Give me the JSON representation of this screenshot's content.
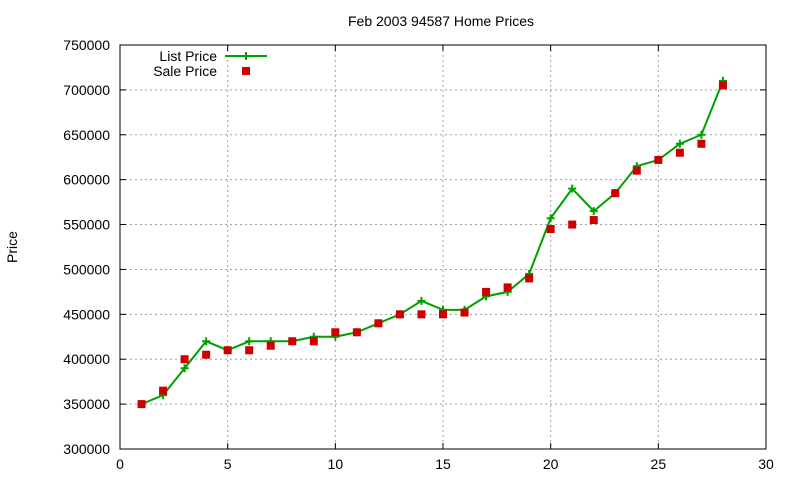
{
  "chart_data": {
    "type": "line",
    "title": "Feb 2003 94587 Home Prices",
    "xlabel": "",
    "ylabel": "Price",
    "xlim": [
      0,
      30
    ],
    "ylim": [
      300000,
      750000
    ],
    "x_ticks": [
      0,
      5,
      10,
      15,
      20,
      25,
      30
    ],
    "y_ticks": [
      300000,
      350000,
      400000,
      450000,
      500000,
      550000,
      600000,
      650000,
      700000,
      750000
    ],
    "x_tick_labels": [
      "0",
      "5",
      "10",
      "15",
      "20",
      "25",
      "30"
    ],
    "y_tick_labels": [
      "300000",
      "350000",
      "400000",
      "450000",
      "500000",
      "550000",
      "600000",
      "650000",
      "700000",
      "750000"
    ],
    "grid": true,
    "legend_position": "top-left",
    "series": [
      {
        "name": "List Price",
        "style": "line-with-plus-markers",
        "color": "#00a000",
        "x": [
          1,
          2,
          3,
          4,
          5,
          6,
          7,
          8,
          9,
          10,
          11,
          12,
          13,
          14,
          15,
          16,
          17,
          18,
          19,
          20,
          21,
          22,
          23,
          24,
          25,
          26,
          27,
          28
        ],
        "values": [
          350000,
          360000,
          390000,
          420000,
          410000,
          420000,
          420000,
          420000,
          425000,
          425000,
          430000,
          440000,
          450000,
          465000,
          455000,
          455000,
          470000,
          475000,
          495000,
          557000,
          590000,
          565000,
          585000,
          615000,
          622000,
          640000,
          650000,
          710000
        ]
      },
      {
        "name": "Sale Price",
        "style": "square-markers",
        "color": "#cc0000",
        "x": [
          1,
          2,
          3,
          4,
          5,
          6,
          7,
          8,
          9,
          10,
          11,
          12,
          13,
          14,
          15,
          16,
          17,
          18,
          19,
          20,
          21,
          22,
          23,
          24,
          25,
          26,
          27,
          28
        ],
        "values": [
          350000,
          365000,
          400000,
          405000,
          410000,
          410000,
          415000,
          420000,
          420000,
          430000,
          430000,
          440000,
          450000,
          450000,
          450000,
          452000,
          475000,
          480000,
          490000,
          545000,
          550000,
          555000,
          585000,
          610000,
          622000,
          630000,
          640000,
          705000
        ]
      }
    ]
  }
}
